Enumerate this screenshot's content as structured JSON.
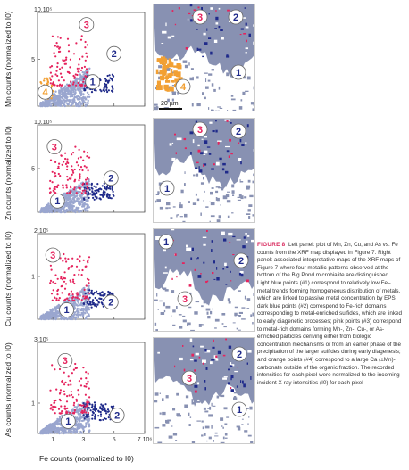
{
  "figure": {
    "label": "FIGURE 8",
    "caption": "Left panel: plot of Mn, Zn, Cu, and As vs. Fe counts from the XRF map displayed in Figure 7. Right panel: associated interpretative maps of the XRF maps of Figure 7 where four metallic patterns observed at the bottom of the Big Pond microbialite are distinguished. Light blue points (#1) correspond to relatively low Fe–metal trends forming homogeneous distribution of metals, which are linked to passive metal concentration by EPS; dark blue points (#2) correspond to Fe-rich domains corresponding to metal-enriched sulfides, which are linked to early diagenetic processes; pink points (#3) correspond to metal-rich domains forming Mn-, Zn-, Cu-, or As-enriched particles deriving either from biologic concentration mechanisms or from an earlier phase of the precipitation of the larger sulfides during early diagenesis; and orange points (#4) correspond to a large Ca (±Mn)-carbonate outside of the organic fraction. The recorded intensities for each pixel were normalized to the incoming incident X-ray intensities (I0) for each pixel"
  },
  "colors": {
    "light_blue": "#9aa6cf",
    "dark_blue": "#1f2a8a",
    "pink": "#e5235d",
    "orange": "#f2a033",
    "map_gray": "#8891b2"
  },
  "x_axis": {
    "label": "Fe counts (normalized to I0)",
    "ticks": [
      "1",
      "3",
      "5",
      "7.10⁶"
    ]
  },
  "scale_bar": "20 µm",
  "chart_data": [
    {
      "type": "scatter",
      "ylabel": "Mn counts (normalized to I0)",
      "y_top_label": "10.10⁵",
      "y_ticks": [
        "5"
      ],
      "ylim": [
        0,
        10
      ],
      "xlim": [
        0,
        7
      ],
      "series": [
        {
          "name": "1",
          "color": "#9aa6cf"
        },
        {
          "name": "2",
          "color": "#1f2a8a"
        },
        {
          "name": "3",
          "color": "#e5235d"
        },
        {
          "name": "4",
          "color": "#f2a033"
        }
      ],
      "labels": [
        "1",
        "2",
        "3",
        "4"
      ]
    },
    {
      "type": "scatter",
      "ylabel": "Zn counts (normalized to I0)",
      "y_top_label": "10.10⁵",
      "y_ticks": [
        "5"
      ],
      "ylim": [
        0,
        10
      ],
      "xlim": [
        0,
        7
      ],
      "series": [
        {
          "name": "1",
          "color": "#9aa6cf"
        },
        {
          "name": "2",
          "color": "#1f2a8a"
        },
        {
          "name": "3",
          "color": "#e5235d"
        }
      ],
      "labels": [
        "1",
        "2",
        "3"
      ]
    },
    {
      "type": "scatter",
      "ylabel": "Cu counts (normalized to I0)",
      "y_top_label": "2.10⁵",
      "y_ticks": [
        "1"
      ],
      "ylim": [
        0,
        2
      ],
      "xlim": [
        0,
        7
      ],
      "series": [
        {
          "name": "1",
          "color": "#9aa6cf"
        },
        {
          "name": "2",
          "color": "#1f2a8a"
        },
        {
          "name": "3",
          "color": "#e5235d"
        }
      ],
      "labels": [
        "1",
        "2",
        "3"
      ]
    },
    {
      "type": "scatter",
      "ylabel": "As counts (normalized to I0)",
      "y_top_label": "3.10⁵",
      "y_ticks": [
        "1"
      ],
      "ylim": [
        0,
        3
      ],
      "xlim": [
        0,
        7
      ],
      "series": [
        {
          "name": "1",
          "color": "#9aa6cf"
        },
        {
          "name": "2",
          "color": "#1f2a8a"
        },
        {
          "name": "3",
          "color": "#e5235d"
        }
      ],
      "labels": [
        "1",
        "2",
        "3"
      ]
    }
  ]
}
